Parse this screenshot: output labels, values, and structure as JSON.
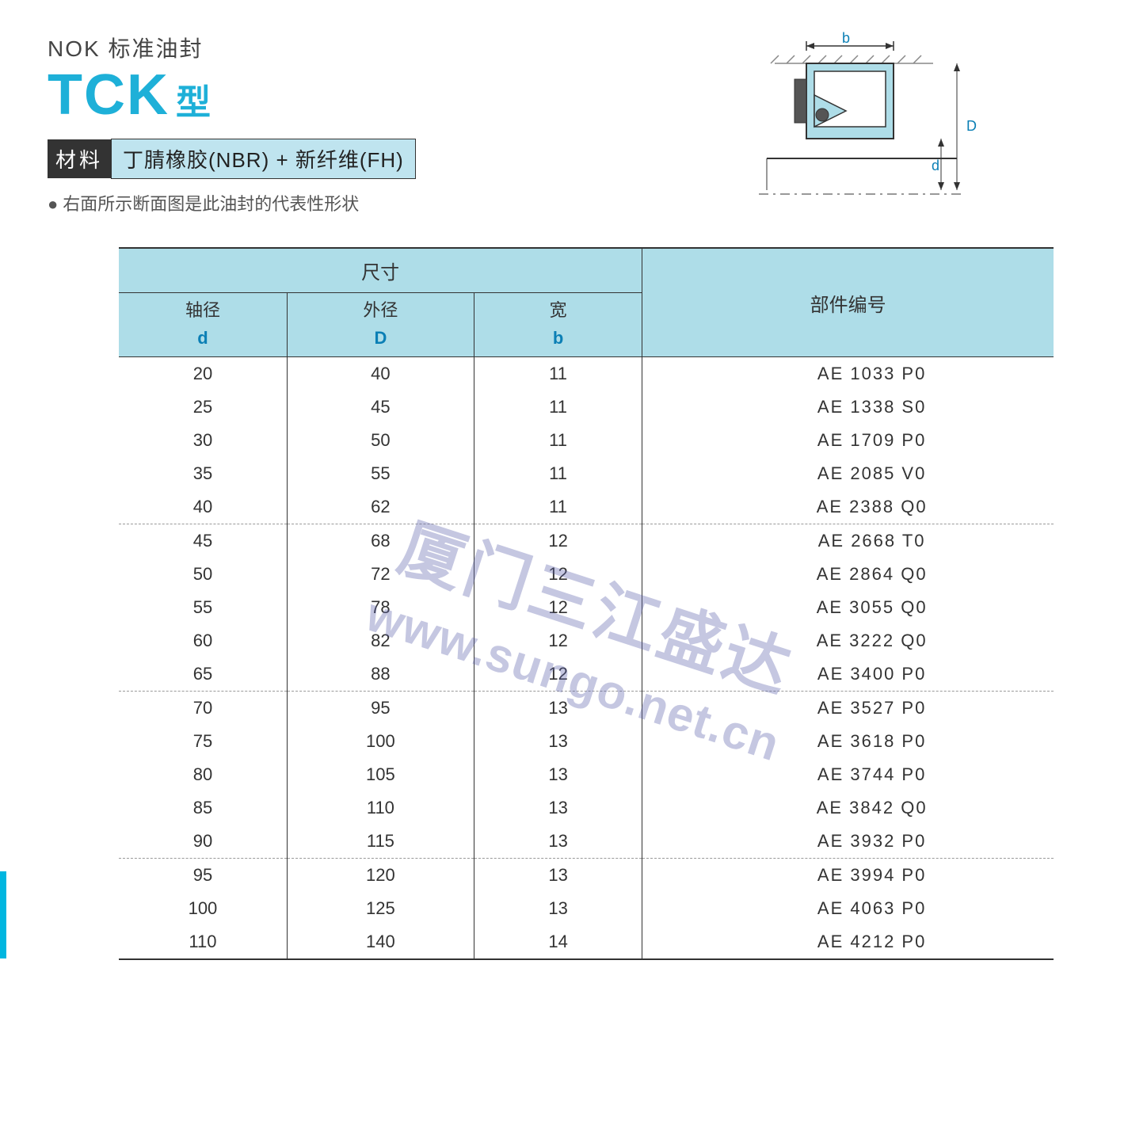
{
  "header": {
    "nok_line": "NOK 标准油封",
    "tck": "TCK",
    "type_suffix": "型",
    "material_label": "材料",
    "material_value": "丁腈橡胶(NBR) + 新纤维(FH)",
    "note": "右面所示断面图是此油封的代表性形状"
  },
  "diagram": {
    "label_b": "b",
    "label_d": "d",
    "label_D": "D",
    "colors": {
      "outline": "#333333",
      "fill_body": "#aedde8",
      "fill_dark": "#555555",
      "hatch": "#888888"
    }
  },
  "table": {
    "header_bg": "#aedde8",
    "symbol_color": "#0b7fb5",
    "dim_label": "尺寸",
    "part_label": "部件编号",
    "cols": [
      {
        "label": "轴径",
        "symbol": "d"
      },
      {
        "label": "外径",
        "symbol": "D"
      },
      {
        "label": "宽",
        "symbol": "b"
      }
    ],
    "groups": [
      [
        {
          "d": "20",
          "D": "40",
          "b": "11",
          "part": "AE 1033 P0"
        },
        {
          "d": "25",
          "D": "45",
          "b": "11",
          "part": "AE 1338 S0"
        },
        {
          "d": "30",
          "D": "50",
          "b": "11",
          "part": "AE 1709 P0"
        },
        {
          "d": "35",
          "D": "55",
          "b": "11",
          "part": "AE 2085 V0"
        },
        {
          "d": "40",
          "D": "62",
          "b": "11",
          "part": "AE 2388 Q0"
        }
      ],
      [
        {
          "d": "45",
          "D": "68",
          "b": "12",
          "part": "AE 2668 T0"
        },
        {
          "d": "50",
          "D": "72",
          "b": "12",
          "part": "AE 2864 Q0"
        },
        {
          "d": "55",
          "D": "78",
          "b": "12",
          "part": "AE 3055 Q0"
        },
        {
          "d": "60",
          "D": "82",
          "b": "12",
          "part": "AE 3222 Q0"
        },
        {
          "d": "65",
          "D": "88",
          "b": "12",
          "part": "AE 3400 P0"
        }
      ],
      [
        {
          "d": "70",
          "D": "95",
          "b": "13",
          "part": "AE 3527 P0"
        },
        {
          "d": "75",
          "D": "100",
          "b": "13",
          "part": "AE 3618 P0"
        },
        {
          "d": "80",
          "D": "105",
          "b": "13",
          "part": "AE 3744 P0"
        },
        {
          "d": "85",
          "D": "110",
          "b": "13",
          "part": "AE 3842 Q0"
        },
        {
          "d": "90",
          "D": "115",
          "b": "13",
          "part": "AE 3932 P0"
        }
      ],
      [
        {
          "d": "95",
          "D": "120",
          "b": "13",
          "part": "AE 3994 P0"
        },
        {
          "d": "100",
          "D": "125",
          "b": "13",
          "part": "AE 4063 P0"
        },
        {
          "d": "110",
          "D": "140",
          "b": "14",
          "part": "AE 4212 P0"
        }
      ]
    ]
  },
  "watermark": {
    "text_cn": "厦门三江盛达",
    "text_url": "www.sungo.net.cn"
  }
}
